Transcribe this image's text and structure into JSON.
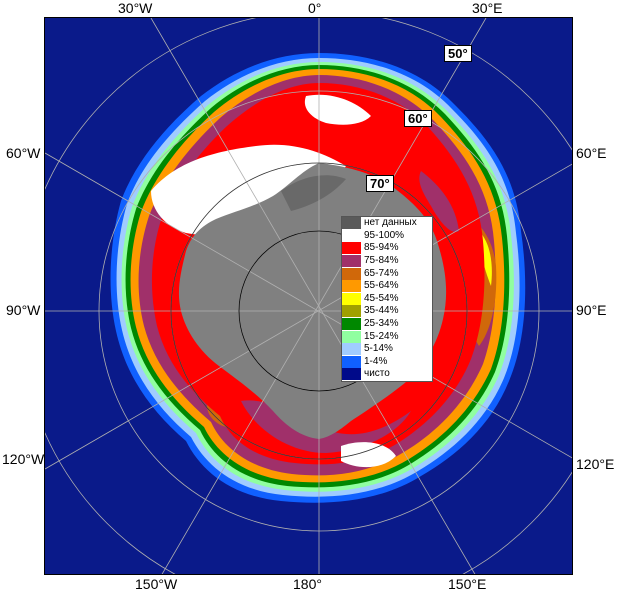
{
  "map": {
    "longitude_labels": {
      "top_30w": "30°W",
      "top_0": "0°",
      "top_30e": "30°E",
      "left_60w": "60°W",
      "left_90w": "90°W",
      "left_120w": "120°W",
      "right_60e": "60°E",
      "right_90e": "90°E",
      "right_120e": "120°E",
      "bottom_150w": "150°W",
      "bottom_180": "180°",
      "bottom_150e": "150°E"
    },
    "latitude_labels": {
      "lat_50": "50°",
      "lat_60": "60°",
      "lat_70": "70°"
    },
    "colors": {
      "ocean": "#0a1a8a",
      "land": "#808080",
      "no_data": "#5a5a5a",
      "ice_95_100": "#ffffff",
      "ice_85_94": "#ff0000",
      "ice_75_84": "#a0306a",
      "ice_65_74": "#d0680a",
      "ice_55_64": "#ff9900",
      "ice_45_54": "#ffff00",
      "ice_35_44": "#a0a000",
      "ice_25_34": "#008800",
      "ice_15_24": "#90ffa0",
      "ice_5_14": "#a0ccff",
      "ice_1_4": "#1060ff",
      "clear": "#000a8a"
    }
  },
  "legend": {
    "items": [
      {
        "label": "нет данных",
        "color": "#5a5a5a"
      },
      {
        "label": "95-100%",
        "color": "#ffffff"
      },
      {
        "label": "85-94%",
        "color": "#ff0000"
      },
      {
        "label": "75-84%",
        "color": "#a0306a"
      },
      {
        "label": "65-74%",
        "color": "#d0680a"
      },
      {
        "label": "55-64%",
        "color": "#ff9900"
      },
      {
        "label": "45-54%",
        "color": "#ffff00"
      },
      {
        "label": "35-44%",
        "color": "#a0a000"
      },
      {
        "label": "25-34%",
        "color": "#008800"
      },
      {
        "label": "15-24%",
        "color": "#90ffa0"
      },
      {
        "label": "5-14%",
        "color": "#a0ccff"
      },
      {
        "label": "1-4%",
        "color": "#1060ff"
      },
      {
        "label": "чисто",
        "color": "#000a8a"
      }
    ]
  }
}
